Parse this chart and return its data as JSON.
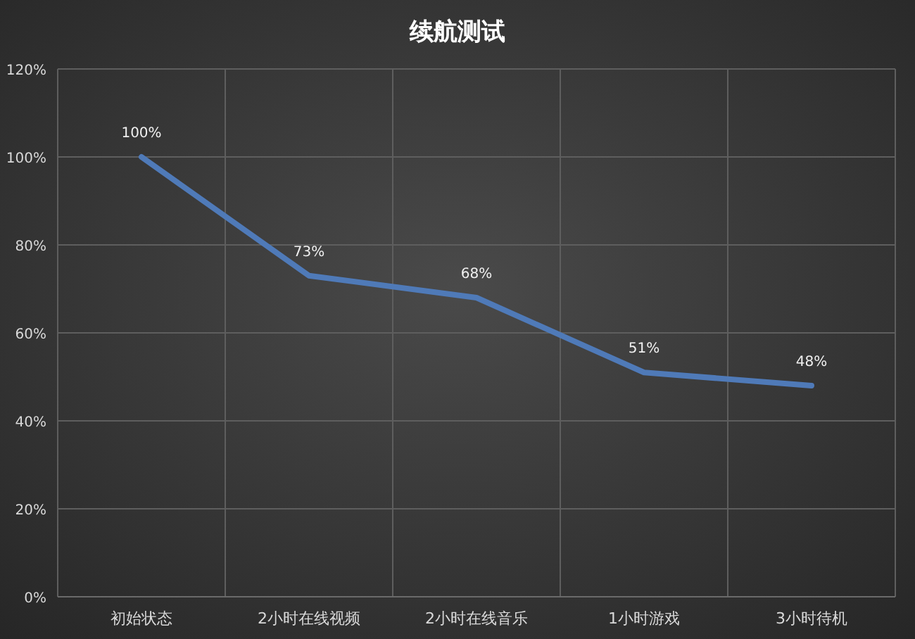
{
  "chart_data": {
    "type": "line",
    "title": "续航测试",
    "categories": [
      "初始状态",
      "2小时在线视频",
      "2小时在线音乐",
      "1小时游戏",
      "3小时待机"
    ],
    "values": [
      100,
      73,
      68,
      51,
      48
    ],
    "value_labels": [
      "100%",
      "73%",
      "68%",
      "51%",
      "48%"
    ],
    "color": "#4f7ab8",
    "ylim": [
      0,
      120
    ],
    "yticks": [
      {
        "value": 0,
        "label": "0%"
      },
      {
        "value": 20,
        "label": "20%"
      },
      {
        "value": 40,
        "label": "40%"
      },
      {
        "value": 60,
        "label": "60%"
      },
      {
        "value": 80,
        "label": "80%"
      },
      {
        "value": 100,
        "label": "100%"
      },
      {
        "value": 120,
        "label": "120%"
      }
    ],
    "grid": true,
    "marker": "none"
  }
}
